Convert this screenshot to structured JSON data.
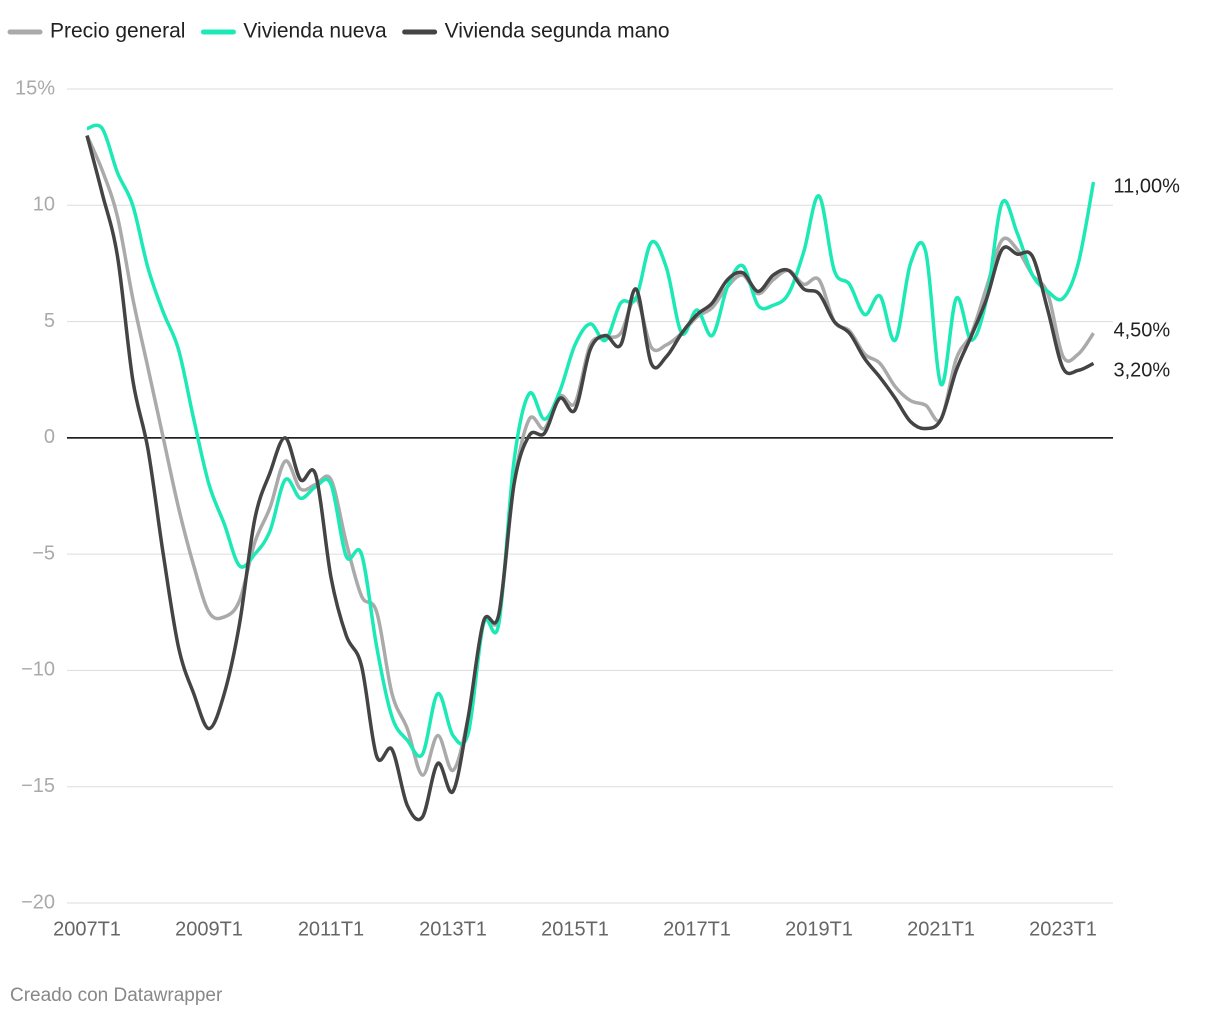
{
  "chart_data": {
    "type": "line",
    "legend": "top-left",
    "categories": [
      "2007T1",
      null,
      null,
      null,
      null,
      null,
      null,
      null,
      "2009T1",
      null,
      null,
      null,
      null,
      null,
      null,
      null,
      "2011T1",
      null,
      null,
      null,
      null,
      null,
      null,
      null,
      "2013T1",
      null,
      null,
      null,
      null,
      null,
      null,
      null,
      "2015T1",
      null,
      null,
      null,
      null,
      null,
      null,
      null,
      "2017T1",
      null,
      null,
      null,
      null,
      null,
      null,
      null,
      "2019T1",
      null,
      null,
      null,
      null,
      null,
      null,
      null,
      "2021T1",
      null,
      null,
      null,
      null,
      null,
      null,
      null,
      "2023T1",
      null,
      null
    ],
    "series": [
      {
        "name": "Precio general",
        "color": "#aaaaaa",
        "values": [
          13.0,
          11.5,
          9.5,
          6.0,
          3.0,
          0.0,
          -3.0,
          -5.5,
          -7.5,
          -7.7,
          -7.0,
          -4.5,
          -3.0,
          -1.0,
          -2.2,
          -2.0,
          -1.8,
          -4.5,
          -6.8,
          -7.5,
          -11.0,
          -12.5,
          -14.5,
          -12.8,
          -14.3,
          -12.0,
          -7.9,
          -7.7,
          -2.0,
          0.8,
          0.4,
          1.8,
          1.5,
          4.0,
          4.3,
          4.5,
          6.0,
          3.9,
          4.0,
          4.5,
          5.2,
          5.6,
          6.5,
          7.0,
          6.2,
          6.8,
          7.2,
          6.6,
          6.8,
          5.0,
          4.6,
          3.6,
          3.2,
          2.2,
          1.6,
          1.4,
          0.8,
          3.4,
          4.5,
          6.5,
          8.5,
          8.1,
          7.0,
          6.2,
          3.5,
          3.6,
          4.5
        ],
        "value_labels": [
          null,
          null,
          null,
          null,
          null,
          null,
          null,
          null,
          null,
          null,
          null,
          null,
          null,
          null,
          null,
          null,
          null,
          null,
          null,
          null,
          null,
          null,
          null,
          null,
          null,
          null,
          null,
          null,
          null,
          null,
          null,
          null,
          null,
          null,
          null,
          null,
          null,
          null,
          null,
          null,
          null,
          null,
          null,
          null,
          null,
          null,
          null,
          null,
          null,
          null,
          null,
          null,
          null,
          null,
          null,
          null,
          null,
          null,
          null,
          null,
          null,
          null,
          null,
          null,
          null,
          null,
          "4,50%"
        ]
      },
      {
        "name": "Vivienda nueva",
        "color": "#1de9b6",
        "values": [
          13.3,
          13.3,
          11.4,
          10.0,
          7.3,
          5.4,
          3.8,
          0.8,
          -2.0,
          -3.7,
          -5.5,
          -5.0,
          -4.0,
          -1.8,
          -2.6,
          -2.1,
          -2.0,
          -5.1,
          -5.0,
          -9.0,
          -12.0,
          -13.0,
          -13.6,
          -11.0,
          -12.8,
          -12.7,
          -8.0,
          -8.0,
          -1.0,
          1.9,
          0.8,
          2.0,
          4.0,
          4.9,
          4.2,
          5.8,
          6.0,
          8.4,
          7.3,
          4.5,
          5.5,
          4.4,
          6.5,
          7.4,
          5.7,
          5.7,
          6.2,
          8.0,
          10.4,
          7.2,
          6.6,
          5.3,
          6.1,
          4.2,
          7.5,
          8.0,
          2.3,
          6.0,
          4.2,
          6.0,
          10.1,
          8.8,
          7.0,
          6.3,
          6.0,
          7.5,
          11.0
        ],
        "value_labels": [
          null,
          null,
          null,
          null,
          null,
          null,
          null,
          null,
          null,
          null,
          null,
          null,
          null,
          null,
          null,
          null,
          null,
          null,
          null,
          null,
          null,
          null,
          null,
          null,
          null,
          null,
          null,
          null,
          null,
          null,
          null,
          null,
          null,
          null,
          null,
          null,
          null,
          null,
          null,
          null,
          null,
          null,
          null,
          null,
          null,
          null,
          null,
          null,
          null,
          null,
          null,
          null,
          null,
          null,
          null,
          null,
          null,
          null,
          null,
          null,
          null,
          null,
          null,
          null,
          null,
          null,
          "11,00%"
        ]
      },
      {
        "name": "Vivienda segunda mano",
        "color": "#444444",
        "values": [
          13.0,
          10.5,
          7.8,
          2.5,
          -0.5,
          -5.0,
          -9.0,
          -11.0,
          -12.5,
          -11.0,
          -8.0,
          -3.5,
          -1.5,
          0.0,
          -1.8,
          -1.6,
          -6.0,
          -8.5,
          -9.8,
          -13.7,
          -13.4,
          -15.8,
          -16.3,
          -14.0,
          -15.2,
          -12.0,
          -7.9,
          -7.6,
          -2.0,
          0.1,
          0.2,
          1.7,
          1.2,
          3.8,
          4.4,
          4.0,
          6.4,
          3.2,
          3.5,
          4.5,
          5.3,
          5.8,
          6.8,
          7.1,
          6.3,
          7.0,
          7.2,
          6.4,
          6.2,
          5.0,
          4.5,
          3.4,
          2.6,
          1.7,
          0.7,
          0.4,
          0.8,
          2.9,
          4.4,
          6.0,
          8.1,
          7.9,
          7.8,
          5.5,
          3.0,
          2.9,
          3.2
        ],
        "value_labels": [
          null,
          null,
          null,
          null,
          null,
          null,
          null,
          null,
          null,
          null,
          null,
          null,
          null,
          null,
          null,
          null,
          null,
          null,
          null,
          null,
          null,
          null,
          null,
          null,
          null,
          null,
          null,
          null,
          null,
          null,
          null,
          null,
          null,
          null,
          null,
          null,
          null,
          null,
          null,
          null,
          null,
          null,
          null,
          null,
          null,
          null,
          null,
          null,
          null,
          null,
          null,
          null,
          null,
          null,
          null,
          null,
          null,
          null,
          null,
          null,
          null,
          null,
          null,
          null,
          null,
          null,
          "3,20%"
        ]
      }
    ],
    "ylim": [
      -20,
      15
    ],
    "yticks": [
      {
        "value": -20,
        "label": "−20"
      },
      {
        "value": -15,
        "label": "−15"
      },
      {
        "value": -10,
        "label": "−10"
      },
      {
        "value": -5,
        "label": "−5"
      },
      0,
      5,
      10,
      {
        "value": 15,
        "label": "15%"
      }
    ],
    "grid": true,
    "source": "Creado con Datawrapper"
  }
}
